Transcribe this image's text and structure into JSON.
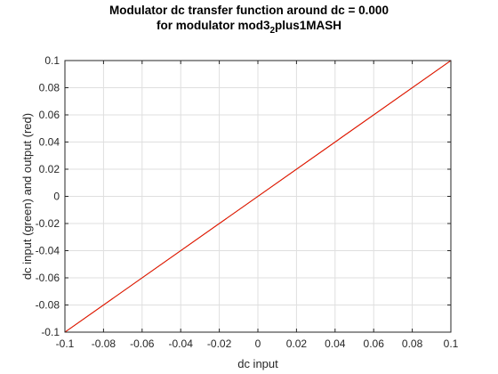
{
  "chart_data": {
    "type": "line",
    "title_line1": "Modulator dc transfer function around dc = 0.000",
    "title_line2_prefix": "for modulator mod3",
    "title_line2_sub": "2",
    "title_line2_suffix": "plus1MASH",
    "xlabel": "dc input",
    "ylabel": "dc input (green) and output (red)",
    "xlim": [
      -0.1,
      0.1
    ],
    "ylim": [
      -0.1,
      0.1
    ],
    "xticks": [
      -0.1,
      -0.08,
      -0.06,
      -0.04,
      -0.02,
      0,
      0.02,
      0.04,
      0.06,
      0.08,
      0.1
    ],
    "yticks": [
      -0.1,
      -0.08,
      -0.06,
      -0.04,
      -0.02,
      0,
      0.02,
      0.04,
      0.06,
      0.08,
      0.1
    ],
    "xtick_labels": [
      "-0.1",
      "-0.08",
      "-0.06",
      "-0.04",
      "-0.02",
      "0",
      "0.02",
      "0.04",
      "0.06",
      "0.08",
      "0.1"
    ],
    "ytick_labels": [
      "-0.1",
      "-0.08",
      "-0.06",
      "-0.04",
      "-0.02",
      "0",
      "0.02",
      "0.04",
      "0.06",
      "0.08",
      "0.1"
    ],
    "grid": true,
    "series": [
      {
        "color": "#00aa00",
        "x": [
          -0.1,
          0.1
        ],
        "y": [
          -0.1,
          0.1
        ]
      },
      {
        "color": "#ff0000",
        "x": [
          -0.1,
          0.1
        ],
        "y": [
          -0.1,
          0.1
        ]
      }
    ]
  }
}
